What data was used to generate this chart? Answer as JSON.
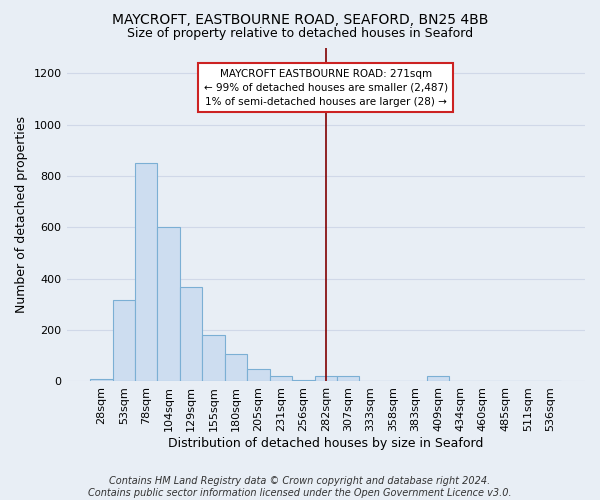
{
  "title": "MAYCROFT, EASTBOURNE ROAD, SEAFORD, BN25 4BB",
  "subtitle": "Size of property relative to detached houses in Seaford",
  "xlabel": "Distribution of detached houses by size in Seaford",
  "ylabel": "Number of detached properties",
  "footnote": "Contains HM Land Registry data © Crown copyright and database right 2024.\nContains public sector information licensed under the Open Government Licence v3.0.",
  "categories": [
    "28sqm",
    "53sqm",
    "78sqm",
    "104sqm",
    "129sqm",
    "155sqm",
    "180sqm",
    "205sqm",
    "231sqm",
    "256sqm",
    "282sqm",
    "307sqm",
    "333sqm",
    "358sqm",
    "383sqm",
    "409sqm",
    "434sqm",
    "460sqm",
    "485sqm",
    "511sqm",
    "536sqm"
  ],
  "values": [
    10,
    316,
    851,
    601,
    369,
    180,
    105,
    47,
    20,
    5,
    20,
    20,
    1,
    0,
    0,
    20,
    0,
    0,
    0,
    0,
    0
  ],
  "bar_facecolor": "#cdddf0",
  "bar_edgecolor": "#7bafd4",
  "vline_color": "#800000",
  "vline_x": 10.0,
  "annotation_line1": "MAYCROFT EASTBOURNE ROAD: 271sqm",
  "annotation_line2": "← 99% of detached houses are smaller (2,487)",
  "annotation_line3": "1% of semi-detached houses are larger (28) →",
  "annotation_box_facecolor": "#ffffff",
  "annotation_box_edgecolor": "#cc2222",
  "ylim": [
    0,
    1300
  ],
  "yticks": [
    0,
    200,
    400,
    600,
    800,
    1000,
    1200
  ],
  "background_color": "#e8eef5",
  "grid_color": "#d0d8e8",
  "title_fontsize": 10,
  "subtitle_fontsize": 9,
  "label_fontsize": 9,
  "tick_fontsize": 8,
  "footnote_fontsize": 7
}
